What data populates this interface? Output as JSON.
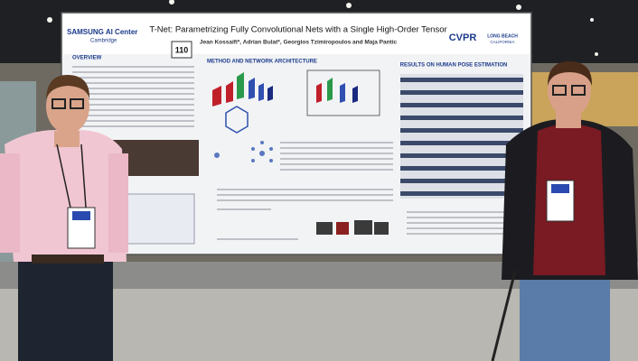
{
  "poster": {
    "sponsor": "SAMSUNG AI Center",
    "sponsor_location": "Cambridge",
    "number": "110",
    "title": "T-Net: Parametrizing Fully Convolutional Nets with a Single High-Order Tensor",
    "authors": "Jean Kossaifi*, Adrian Bulat*, Georgios Tzimiropoulos and Maja Pantic",
    "conference": "CVPR",
    "venue_line1": "LONG BEACH",
    "venue_line2": "CALIFORNIA",
    "sections": [
      "OVERVIEW",
      "METHOD AND NETWORK ARCHITECTURE",
      "RESULTS ON HUMAN POSE ESTIMATION"
    ]
  }
}
